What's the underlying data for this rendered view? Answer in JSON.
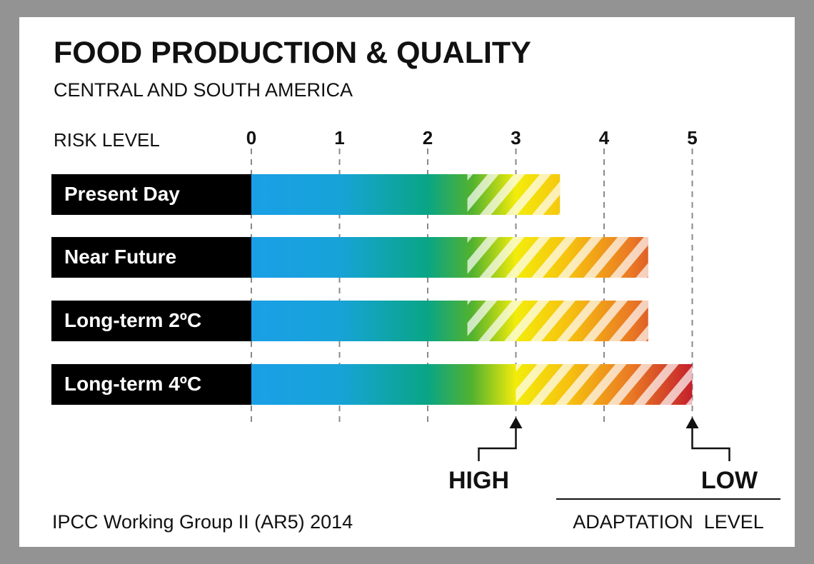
{
  "colors": {
    "frame": "#939393",
    "label_bg": "#000000",
    "risk_very_low": "#1fa3e8",
    "risk_low": "#0aa588",
    "risk_medium": "#7cc222",
    "risk_high": "#f4ec0a",
    "risk_high2": "#f5a01f",
    "risk_very_high": "#c5222b"
  },
  "chart_data": {
    "type": "bar",
    "title": "FOOD PRODUCTION & QUALITY",
    "subtitle": "CENTRAL AND SOUTH AMERICA",
    "axis_label": "RISK LEVEL",
    "xlim": [
      0,
      5
    ],
    "ticks": [
      "0",
      "1",
      "2",
      "3",
      "4",
      "5"
    ],
    "grid": "dashed vertical lines at each risk level",
    "categories": [
      "Present Day",
      "Near Future",
      "Long-term 2ºC",
      "Long-term 4ºC"
    ],
    "bars": [
      {
        "label": "Present Day",
        "high_adaptation": 2.45,
        "low_adaptation": 3.5
      },
      {
        "label": "Near Future",
        "high_adaptation": 2.45,
        "low_adaptation": 4.5
      },
      {
        "label": "Long-term 2ºC",
        "high_adaptation": 2.45,
        "low_adaptation": 4.5
      },
      {
        "label": "Long-term 4ºC",
        "high_adaptation": 3.0,
        "low_adaptation": 5.0
      }
    ],
    "markers": {
      "high": {
        "label": "HIGH",
        "value": 3.0
      },
      "low": {
        "label": "LOW",
        "value": 5.0
      }
    },
    "legend_title": "ADAPTATION  LEVEL",
    "source": "IPCC Working Group II (AR5) 2014"
  }
}
